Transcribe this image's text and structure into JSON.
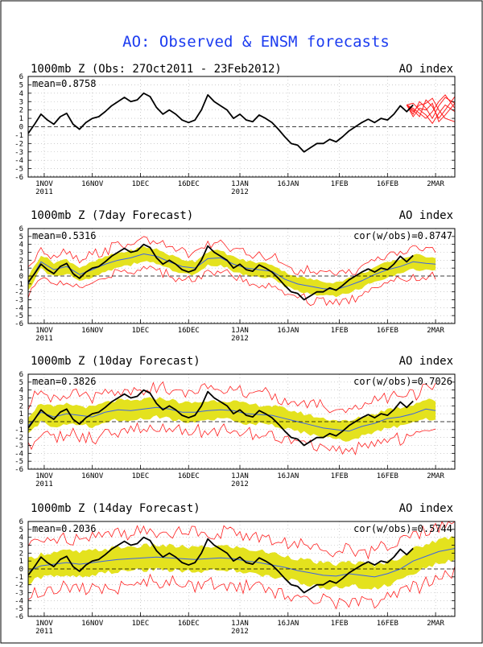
{
  "page": {
    "title": "AO: Observed & ENSM forecasts",
    "title_color": "#1c3cf0"
  },
  "colors": {
    "observed": "#000000",
    "ensemble_mean": "#3a63e8",
    "ensemble_band": "#e4e21e",
    "ensemble_members": "#ff2020",
    "forecast_spaghetti": "#ff2020"
  },
  "chart_data": [
    {
      "type": "line",
      "title": "1000mb Z (Obs: 27Oct2011 - 23Feb2012)",
      "index_label": "AO index",
      "mean_label": "mean=0.8758",
      "cor_label": "",
      "x_tick_labels": [
        "1NOV",
        "16NOV",
        "1DEC",
        "16DEC",
        "1JAN",
        "16JAN",
        "1FEB",
        "16FEB",
        "2MAR"
      ],
      "x_tick_days": [
        5,
        20,
        35,
        50,
        66,
        81,
        97,
        112,
        127
      ],
      "year_labels": [
        {
          "text": "2011",
          "day": 5
        },
        {
          "text": "2012",
          "day": 66
        }
      ],
      "x_range_days": [
        0,
        133
      ],
      "ylim": [
        -6,
        6
      ],
      "y_ticks": [
        -6,
        -5,
        -4,
        -3,
        -2,
        -1,
        0,
        1,
        2,
        3,
        4,
        5,
        6
      ],
      "grid": true,
      "series": [
        {
          "kind": "observed",
          "x": [
            0,
            2,
            4,
            6,
            8,
            10,
            12,
            14,
            16,
            18,
            20,
            22,
            24,
            26,
            28,
            30,
            32,
            34,
            36,
            38,
            40,
            42,
            44,
            46,
            48,
            50,
            52,
            54,
            56,
            58,
            60,
            62,
            64,
            66,
            68,
            70,
            72,
            74,
            76,
            78,
            80,
            82,
            84,
            86,
            88,
            90,
            92,
            94,
            96,
            98,
            100,
            102,
            104,
            106,
            108,
            110,
            112,
            114,
            116,
            118,
            120
          ],
          "y": [
            -0.8,
            0.3,
            1.5,
            0.8,
            0.3,
            1.2,
            1.6,
            0.3,
            -0.3,
            0.5,
            1.0,
            1.2,
            1.8,
            2.5,
            3.0,
            3.5,
            3.0,
            3.2,
            4.0,
            3.6,
            2.3,
            1.5,
            2.0,
            1.5,
            0.8,
            0.5,
            0.8,
            2.0,
            3.8,
            3.0,
            2.5,
            2.0,
            1.0,
            1.5,
            0.8,
            0.6,
            1.4,
            1.0,
            0.5,
            -0.3,
            -1.2,
            -2.0,
            -2.2,
            -3.0,
            -2.5,
            -2.0,
            -2.0,
            -1.5,
            -1.8,
            -1.2,
            -0.5,
            0.0,
            0.5,
            0.9,
            0.5,
            1.0,
            0.8,
            1.5,
            2.5,
            1.8,
            2.6
          ]
        },
        {
          "kind": "members",
          "members": [
            {
              "x": [
                118,
                120,
                122,
                124,
                126,
                128,
                130,
                133
              ],
              "y": [
                2.6,
                1.5,
                3.0,
                2.2,
                1.0,
                2.5,
                3.5,
                2.8
              ]
            },
            {
              "x": [
                118,
                120,
                122,
                124,
                126,
                128,
                130,
                133
              ],
              "y": [
                2.6,
                2.0,
                1.2,
                3.2,
                2.4,
                1.0,
                2.0,
                3.6
              ]
            },
            {
              "x": [
                118,
                120,
                122,
                124,
                126,
                128,
                130,
                133
              ],
              "y": [
                2.6,
                2.8,
                2.0,
                1.4,
                0.4,
                1.6,
                2.6,
                1.8
              ]
            },
            {
              "x": [
                118,
                120,
                122,
                124,
                126,
                128,
                130,
                133
              ],
              "y": [
                2.6,
                1.8,
                2.6,
                2.8,
                3.4,
                2.0,
                1.0,
                0.6
              ]
            },
            {
              "x": [
                118,
                120,
                122,
                124,
                126,
                128,
                130,
                133
              ],
              "y": [
                2.6,
                2.2,
                1.6,
                1.0,
                1.8,
                3.0,
                3.8,
                2.2
              ]
            },
            {
              "x": [
                118,
                120,
                122,
                124,
                126,
                128,
                130,
                133
              ],
              "y": [
                2.6,
                1.2,
                2.2,
                2.0,
                2.8,
                0.6,
                1.4,
                2.8
              ]
            }
          ]
        }
      ]
    },
    {
      "type": "line",
      "title": "1000mb Z (7day Forecast)",
      "index_label": "AO index",
      "mean_label": "mean=0.5316",
      "cor_label": "cor(w/obs)=0.8747",
      "x_tick_labels": [
        "1NOV",
        "16NOV",
        "1DEC",
        "16DEC",
        "1JAN",
        "16JAN",
        "1FEB",
        "16FEB",
        "2MAR"
      ],
      "x_tick_days": [
        5,
        20,
        35,
        50,
        66,
        81,
        97,
        112,
        127
      ],
      "year_labels": [
        {
          "text": "2011",
          "day": 5
        },
        {
          "text": "2012",
          "day": 66
        }
      ],
      "x_range_days": [
        0,
        133
      ],
      "ylim": [
        -6,
        6
      ],
      "y_ticks": [
        -6,
        -5,
        -4,
        -3,
        -2,
        -1,
        0,
        1,
        2,
        3,
        4,
        5,
        6
      ],
      "grid": true,
      "band_halfwidth": 0.9,
      "envelope_halfwidth": 1.8,
      "series": [
        {
          "kind": "observed",
          "x": [
            0,
            2,
            4,
            6,
            8,
            10,
            12,
            14,
            16,
            18,
            20,
            22,
            24,
            26,
            28,
            30,
            32,
            34,
            36,
            38,
            40,
            42,
            44,
            46,
            48,
            50,
            52,
            54,
            56,
            58,
            60,
            62,
            64,
            66,
            68,
            70,
            72,
            74,
            76,
            78,
            80,
            82,
            84,
            86,
            88,
            90,
            92,
            94,
            96,
            98,
            100,
            102,
            104,
            106,
            108,
            110,
            112,
            114,
            116,
            118,
            120
          ],
          "y": [
            -0.8,
            0.3,
            1.5,
            0.8,
            0.3,
            1.2,
            1.6,
            0.3,
            -0.3,
            0.5,
            1.0,
            1.2,
            1.8,
            2.5,
            3.0,
            3.5,
            3.0,
            3.2,
            4.0,
            3.6,
            2.3,
            1.5,
            2.0,
            1.5,
            0.8,
            0.5,
            0.8,
            2.0,
            3.8,
            3.0,
            2.5,
            2.0,
            1.0,
            1.5,
            0.8,
            0.6,
            1.4,
            1.0,
            0.5,
            -0.3,
            -1.2,
            -2.0,
            -2.2,
            -3.0,
            -2.5,
            -2.0,
            -2.0,
            -1.5,
            -1.8,
            -1.2,
            -0.5,
            0.0,
            0.5,
            0.9,
            0.5,
            1.0,
            0.8,
            1.5,
            2.5,
            1.8,
            2.6
          ]
        },
        {
          "kind": "ensemble_mean",
          "x": [
            0,
            4,
            8,
            12,
            16,
            20,
            24,
            28,
            32,
            36,
            40,
            44,
            48,
            52,
            56,
            60,
            64,
            68,
            72,
            76,
            80,
            84,
            88,
            92,
            96,
            100,
            104,
            108,
            112,
            116,
            120,
            124,
            127
          ],
          "y": [
            -1.0,
            1.8,
            0.8,
            1.2,
            0.2,
            0.8,
            1.5,
            2.0,
            2.3,
            2.8,
            2.5,
            1.8,
            1.2,
            1.0,
            2.2,
            2.3,
            1.5,
            1.0,
            0.8,
            0.6,
            -0.4,
            -1.0,
            -1.3,
            -1.6,
            -1.7,
            -1.2,
            -0.6,
            0.2,
            0.8,
            1.2,
            1.8,
            1.6,
            1.5
          ]
        }
      ]
    },
    {
      "type": "line",
      "title": "1000mb Z (10day Forecast)",
      "index_label": "AO index",
      "mean_label": "mean=0.3826",
      "cor_label": "cor(w/obs)=0.7026",
      "x_tick_labels": [
        "1NOV",
        "16NOV",
        "1DEC",
        "16DEC",
        "1JAN",
        "16JAN",
        "1FEB",
        "16FEB",
        "2MAR"
      ],
      "x_tick_days": [
        5,
        20,
        35,
        50,
        66,
        81,
        97,
        112,
        127
      ],
      "year_labels": [
        {
          "text": "2011",
          "day": 5
        },
        {
          "text": "2012",
          "day": 66
        }
      ],
      "x_range_days": [
        0,
        133
      ],
      "ylim": [
        -6,
        6
      ],
      "y_ticks": [
        -6,
        -5,
        -4,
        -3,
        -2,
        -1,
        0,
        1,
        2,
        3,
        4,
        5,
        6
      ],
      "grid": true,
      "band_halfwidth": 1.2,
      "envelope_halfwidth": 2.6,
      "series": [
        {
          "kind": "observed",
          "x": [
            0,
            2,
            4,
            6,
            8,
            10,
            12,
            14,
            16,
            18,
            20,
            22,
            24,
            26,
            28,
            30,
            32,
            34,
            36,
            38,
            40,
            42,
            44,
            46,
            48,
            50,
            52,
            54,
            56,
            58,
            60,
            62,
            64,
            66,
            68,
            70,
            72,
            74,
            76,
            78,
            80,
            82,
            84,
            86,
            88,
            90,
            92,
            94,
            96,
            98,
            100,
            102,
            104,
            106,
            108,
            110,
            112,
            114,
            116,
            118,
            120
          ],
          "y": [
            -0.8,
            0.3,
            1.5,
            0.8,
            0.3,
            1.2,
            1.6,
            0.3,
            -0.3,
            0.5,
            1.0,
            1.2,
            1.8,
            2.5,
            3.0,
            3.5,
            3.0,
            3.2,
            4.0,
            3.6,
            2.3,
            1.5,
            2.0,
            1.5,
            0.8,
            0.5,
            0.8,
            2.0,
            3.8,
            3.0,
            2.5,
            2.0,
            1.0,
            1.5,
            0.8,
            0.6,
            1.4,
            1.0,
            0.5,
            -0.3,
            -1.2,
            -2.0,
            -2.2,
            -3.0,
            -2.5,
            -2.0,
            -2.0,
            -1.5,
            -1.8,
            -1.2,
            -0.5,
            0.0,
            0.5,
            0.9,
            0.5,
            1.0,
            0.8,
            1.5,
            2.5,
            1.8,
            2.6
          ]
        },
        {
          "kind": "ensemble_mean",
          "x": [
            0,
            4,
            8,
            12,
            16,
            20,
            24,
            28,
            32,
            36,
            40,
            44,
            48,
            52,
            56,
            60,
            64,
            68,
            72,
            76,
            80,
            84,
            88,
            92,
            96,
            100,
            104,
            108,
            112,
            116,
            120,
            124,
            127
          ],
          "y": [
            -0.5,
            1.2,
            0.6,
            1.0,
            0.8,
            0.6,
            1.2,
            1.5,
            1.4,
            1.6,
            1.8,
            1.6,
            1.2,
            1.2,
            1.4,
            1.5,
            1.4,
            1.0,
            0.9,
            0.8,
            0.4,
            0.0,
            -0.4,
            -0.8,
            -1.0,
            -1.2,
            -0.6,
            -0.2,
            0.4,
            0.6,
            1.0,
            1.6,
            1.4
          ]
        }
      ]
    },
    {
      "type": "line",
      "title": "1000mb Z (14day Forecast)",
      "index_label": "AO index",
      "mean_label": "mean=0.2036",
      "cor_label": "cor(w/obs)=0.5744",
      "x_tick_labels": [
        "1NOV",
        "16NOV",
        "1DEC",
        "16DEC",
        "1JAN",
        "16JAN",
        "1FEB",
        "16FEB",
        "2MAR"
      ],
      "x_tick_days": [
        5,
        20,
        35,
        50,
        66,
        81,
        97,
        112,
        127
      ],
      "year_labels": [
        {
          "text": "2011",
          "day": 5
        },
        {
          "text": "2012",
          "day": 66
        }
      ],
      "x_range_days": [
        0,
        133
      ],
      "ylim": [
        -6,
        6
      ],
      "y_ticks": [
        -6,
        -5,
        -4,
        -3,
        -2,
        -1,
        0,
        1,
        2,
        3,
        4,
        5,
        6
      ],
      "grid": true,
      "band_halfwidth": 1.5,
      "envelope_halfwidth": 3.3,
      "series": [
        {
          "kind": "observed",
          "x": [
            0,
            2,
            4,
            6,
            8,
            10,
            12,
            14,
            16,
            18,
            20,
            22,
            24,
            26,
            28,
            30,
            32,
            34,
            36,
            38,
            40,
            42,
            44,
            46,
            48,
            50,
            52,
            54,
            56,
            58,
            60,
            62,
            64,
            66,
            68,
            70,
            72,
            74,
            76,
            78,
            80,
            82,
            84,
            86,
            88,
            90,
            92,
            94,
            96,
            98,
            100,
            102,
            104,
            106,
            108,
            110,
            112,
            114,
            116,
            118,
            120
          ],
          "y": [
            -0.8,
            0.3,
            1.5,
            0.8,
            0.3,
            1.2,
            1.6,
            0.3,
            -0.3,
            0.5,
            1.0,
            1.2,
            1.8,
            2.5,
            3.0,
            3.5,
            3.0,
            3.2,
            4.0,
            3.6,
            2.3,
            1.5,
            2.0,
            1.5,
            0.8,
            0.5,
            0.8,
            2.0,
            3.8,
            3.0,
            2.5,
            2.0,
            1.0,
            1.5,
            0.8,
            0.6,
            1.4,
            1.0,
            0.5,
            -0.3,
            -1.2,
            -2.0,
            -2.2,
            -3.0,
            -2.5,
            -2.0,
            -2.0,
            -1.5,
            -1.8,
            -1.2,
            -0.5,
            0.0,
            0.5,
            0.9,
            0.5,
            1.0,
            0.8,
            1.5,
            2.5,
            1.8,
            2.6
          ]
        },
        {
          "kind": "ensemble_mean",
          "x": [
            0,
            4,
            8,
            12,
            16,
            20,
            24,
            28,
            32,
            36,
            40,
            44,
            48,
            52,
            56,
            60,
            64,
            68,
            72,
            76,
            80,
            84,
            88,
            92,
            96,
            100,
            104,
            108,
            112,
            116,
            120,
            124,
            128,
            133
          ],
          "y": [
            -0.3,
            0.4,
            0.6,
            0.8,
            0.6,
            0.8,
            1.0,
            1.2,
            1.3,
            1.4,
            1.5,
            1.4,
            1.3,
            1.2,
            1.3,
            1.4,
            1.3,
            1.0,
            0.8,
            0.5,
            0.2,
            -0.2,
            -0.5,
            -0.8,
            -0.9,
            -0.6,
            -0.8,
            -1.0,
            -0.6,
            0.0,
            1.0,
            1.6,
            2.2,
            2.6
          ]
        }
      ]
    }
  ]
}
